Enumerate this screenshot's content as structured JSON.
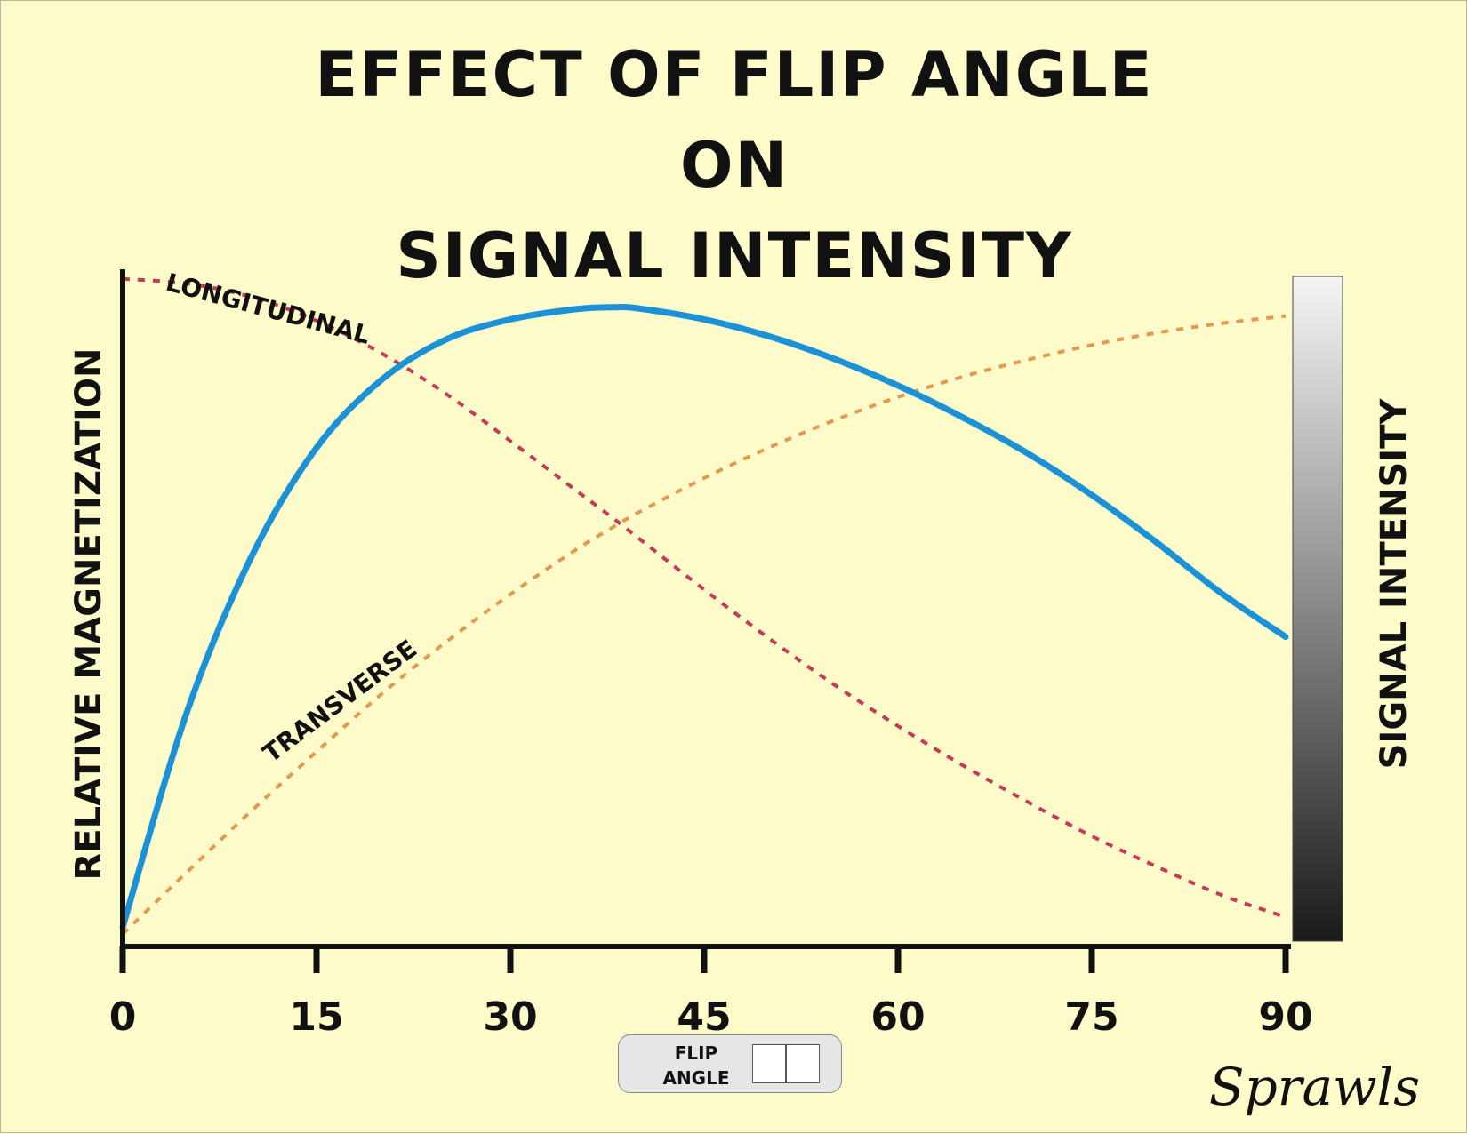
{
  "title": {
    "line1": "EFFECT OF FLIP ANGLE",
    "line2": "ON",
    "line3": "SIGNAL INTENSITY"
  },
  "signature": "Sprawls",
  "flip_angle_box": {
    "label_line1": "FLIP",
    "label_line2": "ANGLE"
  },
  "colors": {
    "background": "#fdfbc9",
    "signal": "#1b92d8",
    "longitudinal": "#c8385a",
    "transverse": "#e49a4c",
    "axis": "#111111"
  },
  "chart_data": {
    "type": "line",
    "ylabel": "RELATIVE MAGNETIZATION",
    "ylabel_right": "SIGNAL INTENSITY",
    "xlim": [
      0,
      90
    ],
    "x_ticks": [
      0,
      15,
      30,
      45,
      60,
      75,
      90
    ],
    "x_tick_labels": [
      "0",
      "15",
      "30",
      "45",
      "60",
      "75",
      "90"
    ],
    "y_ticks": [],
    "grid": false,
    "right_gradient_bar": {
      "top_color": "#f5f5f5",
      "bottom_color": "#1a1a1a"
    },
    "x": [
      0,
      5,
      10,
      15,
      20,
      25,
      30,
      35,
      38,
      40,
      45,
      50,
      55,
      60,
      65,
      70,
      75,
      80,
      85,
      90
    ],
    "series": [
      {
        "name": "LONGITUDINAL",
        "style": "dotted",
        "values": [
          0.97,
          0.963,
          0.943,
          0.908,
          0.86,
          0.8,
          0.73,
          0.658,
          0.615,
          0.585,
          0.51,
          0.438,
          0.37,
          0.308,
          0.25,
          0.196,
          0.145,
          0.1,
          0.058,
          0.025
        ]
      },
      {
        "name": "TRANSVERSE",
        "style": "dotted",
        "values": [
          0.0,
          0.092,
          0.183,
          0.27,
          0.355,
          0.432,
          0.503,
          0.568,
          0.603,
          0.625,
          0.675,
          0.72,
          0.76,
          0.795,
          0.825,
          0.85,
          0.872,
          0.89,
          0.904,
          0.915
        ]
      },
      {
        "name": "",
        "style": "solid",
        "values": [
          0.01,
          0.33,
          0.56,
          0.72,
          0.82,
          0.88,
          0.91,
          0.925,
          0.928,
          0.926,
          0.91,
          0.885,
          0.852,
          0.812,
          0.765,
          0.712,
          0.65,
          0.58,
          0.505,
          0.44
        ]
      }
    ]
  }
}
